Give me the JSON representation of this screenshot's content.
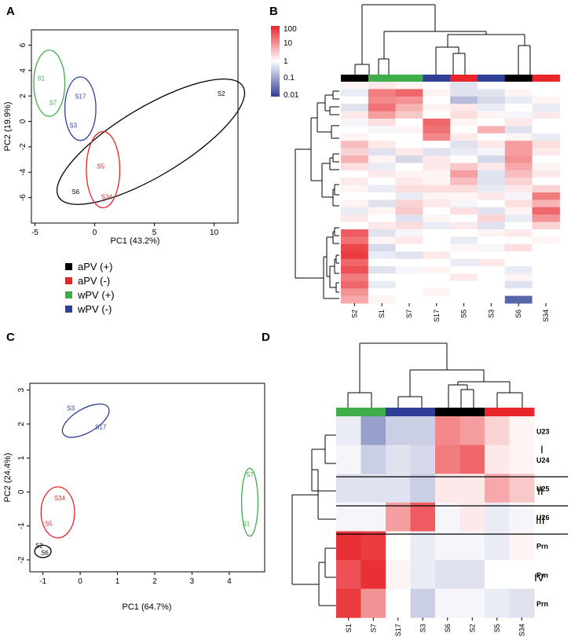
{
  "panels": {
    "a": "A",
    "b": "B",
    "c": "C",
    "d": "D"
  },
  "colors": {
    "aPV_plus": "#000000",
    "aPV_minus": "#e8262a",
    "wPV_plus": "#3fae49",
    "wPV_minus": "#2f3f96"
  },
  "legend": [
    {
      "label": "aPV (+)",
      "color": "#000000"
    },
    {
      "label": "aPV (-)",
      "color": "#e8262a"
    },
    {
      "label": "wPV (+)",
      "color": "#3fae49"
    },
    {
      "label": "wPV (-)",
      "color": "#2f3f96"
    }
  ],
  "colorbar": {
    "labels": [
      "100",
      "10",
      "1",
      "0.1",
      "0.01"
    ]
  },
  "chart_data": [
    {
      "id": "A",
      "type": "scatter",
      "xlabel": "PC1 (43.2%)",
      "ylabel": "PC2 (19.9%)",
      "xlim": [
        -5.3,
        12
      ],
      "ylim": [
        -8,
        7.2
      ],
      "xticks": [
        -5,
        0,
        5,
        10
      ],
      "yticks": [
        -6,
        -4,
        -2,
        0,
        2,
        4,
        6
      ],
      "points": [
        {
          "label": "S1",
          "x": -4.5,
          "y": 3.2,
          "group": "wPV_plus"
        },
        {
          "label": "S7",
          "x": -3.5,
          "y": 1.3,
          "group": "wPV_plus"
        },
        {
          "label": "S17",
          "x": -1.2,
          "y": 1.8,
          "group": "wPV_minus"
        },
        {
          "label": "S3",
          "x": -1.8,
          "y": -0.5,
          "group": "wPV_minus"
        },
        {
          "label": "S2",
          "x": 10.6,
          "y": 2.0,
          "group": "aPV_plus"
        },
        {
          "label": "S6",
          "x": -1.6,
          "y": -5.7,
          "group": "aPV_plus"
        },
        {
          "label": "S5",
          "x": 0.5,
          "y": -3.7,
          "group": "aPV_minus"
        },
        {
          "label": "S34",
          "x": 1.0,
          "y": -6.1,
          "group": "aPV_minus"
        }
      ],
      "ellipses": [
        {
          "group": "wPV_plus",
          "cx": -3.8,
          "cy": 3.0,
          "rx": 1.3,
          "ry": 2.6,
          "angle": 0
        },
        {
          "group": "wPV_minus",
          "cx": -1.2,
          "cy": 1.0,
          "rx": 1.3,
          "ry": 2.5,
          "angle": 0
        },
        {
          "group": "aPV_plus",
          "cx": 4.7,
          "cy": -1.6,
          "rx": 9.0,
          "ry": 2.7,
          "angle": 31
        },
        {
          "group": "aPV_minus",
          "cx": 0.7,
          "cy": -3.8,
          "rx": 1.4,
          "ry": 3.0,
          "angle": 0
        }
      ]
    },
    {
      "id": "B",
      "type": "heatmap",
      "columns": [
        "S2",
        "S1",
        "S7",
        "S17",
        "S5",
        "S3",
        "S6",
        "S34"
      ],
      "column_groups": [
        "aPV_plus",
        "wPV_plus",
        "wPV_plus",
        "wPV_minus",
        "aPV_minus",
        "wPV_minus",
        "aPV_plus",
        "aPV_minus"
      ],
      "scale": "log10 fold change, 0.01 (blue) to 100 (red)",
      "values": [
        [
          0.1,
          0.2,
          0.1,
          0.0,
          -0.3,
          0.0,
          0.0,
          0.0
        ],
        [
          -0.2,
          1.2,
          1.4,
          0.1,
          -0.3,
          -0.3,
          0.1,
          0.0
        ],
        [
          0.0,
          1.1,
          1.0,
          0.0,
          -0.7,
          -0.4,
          -0.2,
          0.1
        ],
        [
          -0.3,
          1.3,
          0.7,
          0.1,
          0.2,
          -0.2,
          0.0,
          -0.2
        ],
        [
          0.2,
          0.9,
          0.5,
          0.0,
          0.3,
          0.1,
          -0.1,
          0.2
        ],
        [
          -0.1,
          0.3,
          0.0,
          1.4,
          0.1,
          0.0,
          0.2,
          0.0
        ],
        [
          0.0,
          -0.1,
          0.1,
          1.3,
          0.0,
          0.7,
          -0.3,
          0.0
        ],
        [
          0.1,
          0.0,
          0.0,
          1.1,
          0.2,
          0.0,
          0.1,
          -0.2
        ],
        [
          0.6,
          0.2,
          0.0,
          0.0,
          -0.3,
          0.2,
          0.9,
          0.3
        ],
        [
          0.4,
          -0.3,
          0.2,
          -0.3,
          -0.2,
          -0.1,
          0.9,
          0.2
        ],
        [
          0.7,
          0.1,
          -0.4,
          0.2,
          0.0,
          -0.4,
          1.0,
          0.0
        ],
        [
          0.3,
          -0.2,
          0.0,
          0.2,
          0.5,
          0.2,
          0.8,
          0.1
        ],
        [
          0.0,
          0.2,
          0.1,
          0.1,
          0.9,
          -0.3,
          0.6,
          0.2
        ],
        [
          0.2,
          0.0,
          0.2,
          0.1,
          0.6,
          -0.3,
          0.4,
          0.0
        ],
        [
          0.1,
          -0.2,
          0.3,
          0.3,
          0.3,
          -0.2,
          0.2,
          0.4
        ],
        [
          0.0,
          0.0,
          -0.2,
          0.1,
          0.1,
          0.2,
          -0.1,
          1.2
        ],
        [
          0.1,
          -0.3,
          0.4,
          0.2,
          -0.1,
          0.0,
          0.3,
          0.7
        ],
        [
          -0.2,
          0.1,
          0.5,
          0.0,
          0.3,
          -0.3,
          0.1,
          1.4
        ],
        [
          0.2,
          0.0,
          -0.3,
          0.1,
          0.0,
          0.4,
          -0.2,
          1.0
        ],
        [
          0.0,
          0.2,
          0.3,
          -0.2,
          0.2,
          -0.3,
          0.0,
          0.4
        ],
        [
          1.5,
          -0.3,
          -0.1,
          0.0,
          0.0,
          0.1,
          0.2,
          0.0
        ],
        [
          1.3,
          0.1,
          0.2,
          0.0,
          -0.2,
          0.0,
          0.0,
          0.1
        ],
        [
          1.7,
          -0.4,
          0.0,
          0.0,
          0.1,
          -0.1,
          0.3,
          0.0
        ],
        [
          1.8,
          -0.2,
          -0.3,
          0.2,
          0.0,
          0.0,
          0.0,
          0.0
        ],
        [
          1.4,
          0.0,
          0.0,
          0.0,
          -0.2,
          0.2,
          0.0,
          0.0
        ],
        [
          1.6,
          -0.3,
          -0.1,
          0.1,
          0.0,
          0.0,
          -0.2,
          0.0
        ],
        [
          1.2,
          0.0,
          0.0,
          0.0,
          0.2,
          0.0,
          0.1,
          0.0
        ],
        [
          1.4,
          -0.2,
          0.0,
          0.0,
          0.0,
          0.0,
          -0.3,
          0.0
        ],
        [
          1.0,
          0.0,
          0.0,
          0.1,
          0.0,
          0.0,
          0.0,
          0.0
        ],
        [
          0.8,
          0.1,
          0.0,
          0.0,
          0.0,
          0.0,
          -1.6,
          0.0
        ]
      ]
    },
    {
      "id": "C",
      "type": "scatter",
      "xlabel": "PC1 (64.7%)",
      "ylabel": "PC2 (24.4%)",
      "xlim": [
        -1.35,
        4.95
      ],
      "ylim": [
        -2.35,
        3.2
      ],
      "xticks": [
        -1,
        0,
        1,
        2,
        3,
        4
      ],
      "yticks": [
        -2,
        -1,
        0,
        1,
        2,
        3
      ],
      "points": [
        {
          "label": "S3",
          "x": -0.25,
          "y": 2.4,
          "group": "wPV_minus"
        },
        {
          "label": "S17",
          "x": 0.55,
          "y": 1.85,
          "group": "wPV_minus"
        },
        {
          "label": "S34",
          "x": -0.55,
          "y": -0.25,
          "group": "aPV_minus"
        },
        {
          "label": "S5",
          "x": -0.85,
          "y": -1.0,
          "group": "aPV_minus"
        },
        {
          "label": "S2",
          "x": -1.1,
          "y": -1.65,
          "group": "aPV_plus"
        },
        {
          "label": "S6",
          "x": -0.95,
          "y": -1.85,
          "group": "aPV_plus"
        },
        {
          "label": "S7",
          "x": 4.55,
          "y": 0.45,
          "group": "wPV_plus"
        },
        {
          "label": "S1",
          "x": 4.45,
          "y": -1.0,
          "group": "wPV_plus"
        }
      ],
      "ellipses": [
        {
          "group": "wPV_minus",
          "cx": 0.15,
          "cy": 2.1,
          "rx": 0.7,
          "ry": 0.35,
          "angle": 30
        },
        {
          "group": "aPV_minus",
          "cx": -0.6,
          "cy": -0.6,
          "rx": 0.45,
          "ry": 0.75,
          "angle": 0
        },
        {
          "group": "aPV_plus",
          "cx": -1.0,
          "cy": -1.75,
          "rx": 0.22,
          "ry": 0.18,
          "angle": 0
        },
        {
          "group": "wPV_plus",
          "cx": 4.55,
          "cy": -0.3,
          "rx": 0.22,
          "ry": 1.0,
          "angle": 0
        }
      ]
    },
    {
      "id": "D",
      "type": "heatmap",
      "columns": [
        "S1",
        "S7",
        "S17",
        "S3",
        "S6",
        "S2",
        "S5",
        "S34"
      ],
      "column_groups": [
        "wPV_plus",
        "wPV_plus",
        "wPV_minus",
        "wPV_minus",
        "aPV_plus",
        "aPV_plus",
        "aPV_minus",
        "aPV_minus"
      ],
      "rows": [
        "U23",
        "U24",
        "U25",
        "U26",
        "Prn",
        "Prn",
        "Prn"
      ],
      "clusters": [
        {
          "label": "I",
          "rows": [
            0,
            1
          ]
        },
        {
          "label": "II",
          "rows": [
            2
          ]
        },
        {
          "label": "III",
          "rows": [
            3
          ]
        },
        {
          "label": "IV",
          "rows": [
            4,
            5,
            6
          ]
        }
      ],
      "values": [
        [
          -0.2,
          -1.0,
          -0.5,
          -0.5,
          1.1,
          0.9,
          0.4,
          0.1
        ],
        [
          -0.1,
          -0.5,
          -0.3,
          -0.4,
          1.2,
          1.4,
          0.2,
          0.1
        ],
        [
          -0.3,
          -0.3,
          -0.3,
          -0.5,
          0.2,
          0.2,
          0.8,
          0.5
        ],
        [
          -0.1,
          -0.1,
          0.9,
          1.5,
          -0.1,
          0.2,
          -0.2,
          -0.1
        ],
        [
          1.9,
          1.8,
          0.0,
          -0.2,
          -0.1,
          -0.1,
          -0.2,
          0.1
        ],
        [
          1.6,
          1.9,
          0.1,
          -0.2,
          -0.3,
          -0.3,
          0.0,
          0.0
        ],
        [
          1.8,
          1.0,
          0.0,
          -0.5,
          -0.1,
          -0.1,
          -0.2,
          -0.3
        ]
      ]
    }
  ]
}
